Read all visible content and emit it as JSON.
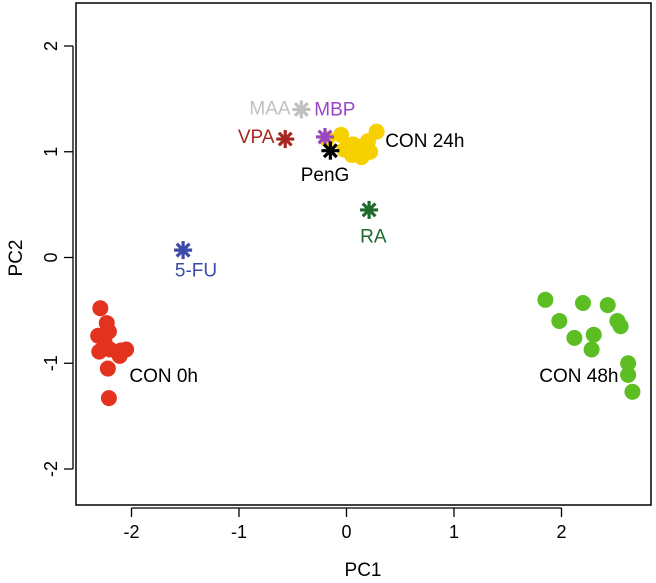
{
  "chart_data": {
    "type": "scatter",
    "xlabel": "PC1",
    "ylabel": "PC2",
    "xlim": [
      -2.5,
      2.8
    ],
    "ylim": [
      -2.3,
      2.3
    ],
    "x_ticks": [
      -2,
      -1,
      0,
      1,
      2
    ],
    "y_ticks": [
      -2,
      -1,
      0,
      1,
      2
    ],
    "x_tick_labels": [
      "-2",
      "-1",
      "0",
      "1",
      "2"
    ],
    "y_tick_labels": [
      "-2",
      "-1",
      "0",
      "1",
      "2"
    ],
    "grid": false,
    "series": [
      {
        "name": "CON 0h",
        "marker": "circle",
        "color": "#e3331f",
        "points": [
          [
            -2.29,
            -0.48
          ],
          [
            -2.23,
            -0.62
          ],
          [
            -2.31,
            -0.74
          ],
          [
            -2.21,
            -0.7
          ],
          [
            -2.25,
            -0.8
          ],
          [
            -2.3,
            -0.89
          ],
          [
            -2.2,
            -0.87
          ],
          [
            -2.11,
            -0.93
          ],
          [
            -2.05,
            -0.87
          ],
          [
            -2.1,
            -0.88
          ],
          [
            -2.22,
            -1.05
          ],
          [
            -2.21,
            -1.33
          ]
        ]
      },
      {
        "name": "CON 24h",
        "marker": "circle",
        "color": "#f7d000",
        "points": [
          [
            -0.18,
            1.12
          ],
          [
            -0.05,
            1.16
          ],
          [
            0.06,
            1.07
          ],
          [
            0.2,
            1.1
          ],
          [
            0.28,
            1.19
          ],
          [
            0.22,
            1.0
          ],
          [
            0.05,
            0.97
          ],
          [
            -0.02,
            1.02
          ],
          [
            0.1,
            1.05
          ],
          [
            0.14,
            0.95
          ]
        ]
      },
      {
        "name": "CON 48h",
        "marker": "circle",
        "color": "#5cbe23",
        "points": [
          [
            1.85,
            -0.4
          ],
          [
            2.2,
            -0.43
          ],
          [
            2.43,
            -0.45
          ],
          [
            2.52,
            -0.6
          ],
          [
            1.98,
            -0.6
          ],
          [
            2.55,
            -0.65
          ],
          [
            2.12,
            -0.76
          ],
          [
            2.3,
            -0.73
          ],
          [
            2.28,
            -0.87
          ],
          [
            2.62,
            -1.0
          ],
          [
            2.62,
            -1.11
          ],
          [
            2.66,
            -1.27
          ]
        ]
      },
      {
        "name": "MAA",
        "marker": "asterisk",
        "color": "#c0c0c0",
        "points": [
          [
            -0.42,
            1.4
          ]
        ]
      },
      {
        "name": "MBP",
        "marker": "asterisk",
        "color": "#9a45c4",
        "points": [
          [
            -0.2,
            1.14
          ]
        ]
      },
      {
        "name": "VPA",
        "marker": "asterisk",
        "color": "#a62821",
        "points": [
          [
            -0.57,
            1.12
          ]
        ]
      },
      {
        "name": "PenG",
        "marker": "asterisk",
        "color": "#000000",
        "points": [
          [
            -0.15,
            1.01
          ]
        ]
      },
      {
        "name": "RA",
        "marker": "asterisk",
        "color": "#1d6a2c",
        "points": [
          [
            0.21,
            0.45
          ]
        ]
      },
      {
        "name": "5-FU",
        "marker": "asterisk",
        "color": "#3c4aa8",
        "points": [
          [
            -1.52,
            0.07
          ]
        ]
      }
    ],
    "annotations": [
      {
        "text": "CON 0h",
        "color": "#000000",
        "x": -2.02,
        "y": -1.13,
        "anchor": "start"
      },
      {
        "text": "CON 24h",
        "color": "#000000",
        "x": 0.36,
        "y": 1.09,
        "anchor": "start"
      },
      {
        "text": "CON 48h",
        "color": "#000000",
        "x": 2.53,
        "y": -1.13,
        "anchor": "end"
      },
      {
        "text": "MAA",
        "color": "#c0c0c0",
        "x": -0.52,
        "y": 1.4,
        "anchor": "end"
      },
      {
        "text": "MBP",
        "color": "#9a45c4",
        "x": -0.3,
        "y": 1.39,
        "anchor": "start"
      },
      {
        "text": "VPA",
        "color": "#a62821",
        "x": -0.67,
        "y": 1.13,
        "anchor": "end"
      },
      {
        "text": "PenG",
        "color": "#000000",
        "x": -0.2,
        "y": 0.77,
        "anchor": "middle"
      },
      {
        "text": "RA",
        "color": "#1d6a2c",
        "x": 0.25,
        "y": 0.19,
        "anchor": "middle"
      },
      {
        "text": "5-FU",
        "color": "#3c4aa8",
        "x": -1.4,
        "y": -0.13,
        "anchor": "middle"
      }
    ]
  }
}
